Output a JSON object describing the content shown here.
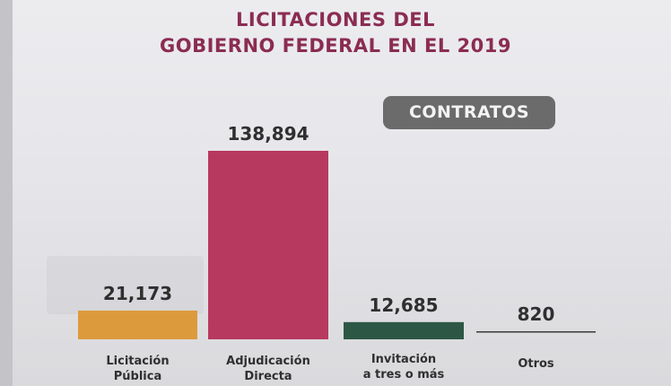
{
  "title_line1": "LICITACIONES DEL",
  "title_line2": "GOBIERNO FEDERAL EN EL 2019",
  "badge": "CONTRATOS",
  "colors": {
    "title": "#8b2c52",
    "badge_bg": "#6b6b6c",
    "series": [
      "#dd9a3d",
      "#b7395f",
      "#2d5745",
      "#3a3a3a"
    ]
  },
  "chart_data": {
    "type": "bar",
    "title": "LICITACIONES DEL GOBIERNO FEDERAL EN EL 2019",
    "categories": [
      [
        "Licitación",
        "Pública"
      ],
      [
        "Adjudicación",
        "Directa"
      ],
      [
        "Invitación",
        "a tres o más"
      ],
      [
        "Otros"
      ]
    ],
    "values": [
      21173,
      138894,
      12685,
      820
    ],
    "value_labels": [
      "21,173",
      "138,894",
      "12,685",
      "820"
    ],
    "ylim": [
      0,
      138894
    ],
    "grid": false,
    "legend": "none"
  }
}
